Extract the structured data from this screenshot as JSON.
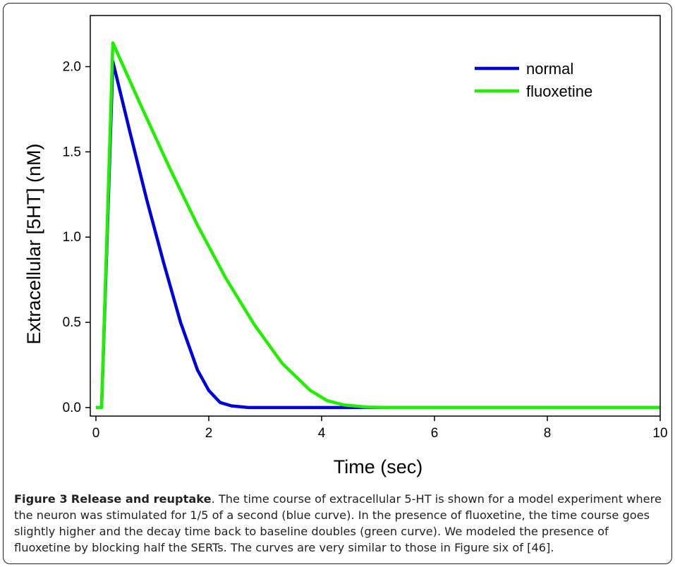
{
  "chart_data": {
    "type": "line",
    "title": "",
    "xlabel": "Time (sec)",
    "ylabel": "Extracellular [5HT] (nM)",
    "xlim": [
      -0.1,
      10
    ],
    "ylim": [
      -0.05,
      2.3
    ],
    "xticks": [
      0,
      2,
      4,
      6,
      8,
      10
    ],
    "yticks": [
      0.0,
      0.5,
      1.0,
      1.5,
      2.0
    ],
    "xtick_labels": [
      "0",
      "2",
      "4",
      "6",
      "8",
      "10"
    ],
    "ytick_labels": [
      "0.0",
      "0.5",
      "1.0",
      "1.5",
      "2.0"
    ],
    "grid": false,
    "legend_position": "top-right",
    "series": [
      {
        "name": "normal",
        "color": "#0000dd",
        "x": [
          0.0,
          0.1,
          0.3,
          0.6,
          0.9,
          1.2,
          1.5,
          1.8,
          2.0,
          2.2,
          2.4,
          2.7,
          3.0,
          4.0,
          6.0,
          8.0,
          10.0
        ],
        "y": [
          0.0,
          0.0,
          2.03,
          1.62,
          1.22,
          0.85,
          0.5,
          0.22,
          0.1,
          0.03,
          0.01,
          0.0,
          0.0,
          0.0,
          0.0,
          0.0,
          0.0
        ]
      },
      {
        "name": "fluoxetine",
        "color": "#22ee00",
        "x": [
          0.0,
          0.1,
          0.3,
          0.8,
          1.3,
          1.8,
          2.3,
          2.8,
          3.3,
          3.8,
          4.1,
          4.4,
          4.8,
          5.2,
          6.0,
          8.0,
          10.0
        ],
        "y": [
          0.0,
          0.0,
          2.14,
          1.77,
          1.41,
          1.07,
          0.76,
          0.49,
          0.26,
          0.1,
          0.04,
          0.015,
          0.003,
          0.0,
          0.0,
          0.0,
          0.0
        ]
      }
    ]
  },
  "caption": {
    "figure_label": "Figure 3",
    "title": "Release and reuptake",
    "text": ". The time course of extracellular 5-HT is shown for a model experiment where the neuron was stimulated for 1/5 of a second (blue curve). In the presence of fluoxetine, the time course goes slightly higher and the decay time back to baseline doubles (green curve). We modeled the presence of fluoxetine by blocking half the SERTs. The curves are very similar to those in Figure six of [46]."
  }
}
